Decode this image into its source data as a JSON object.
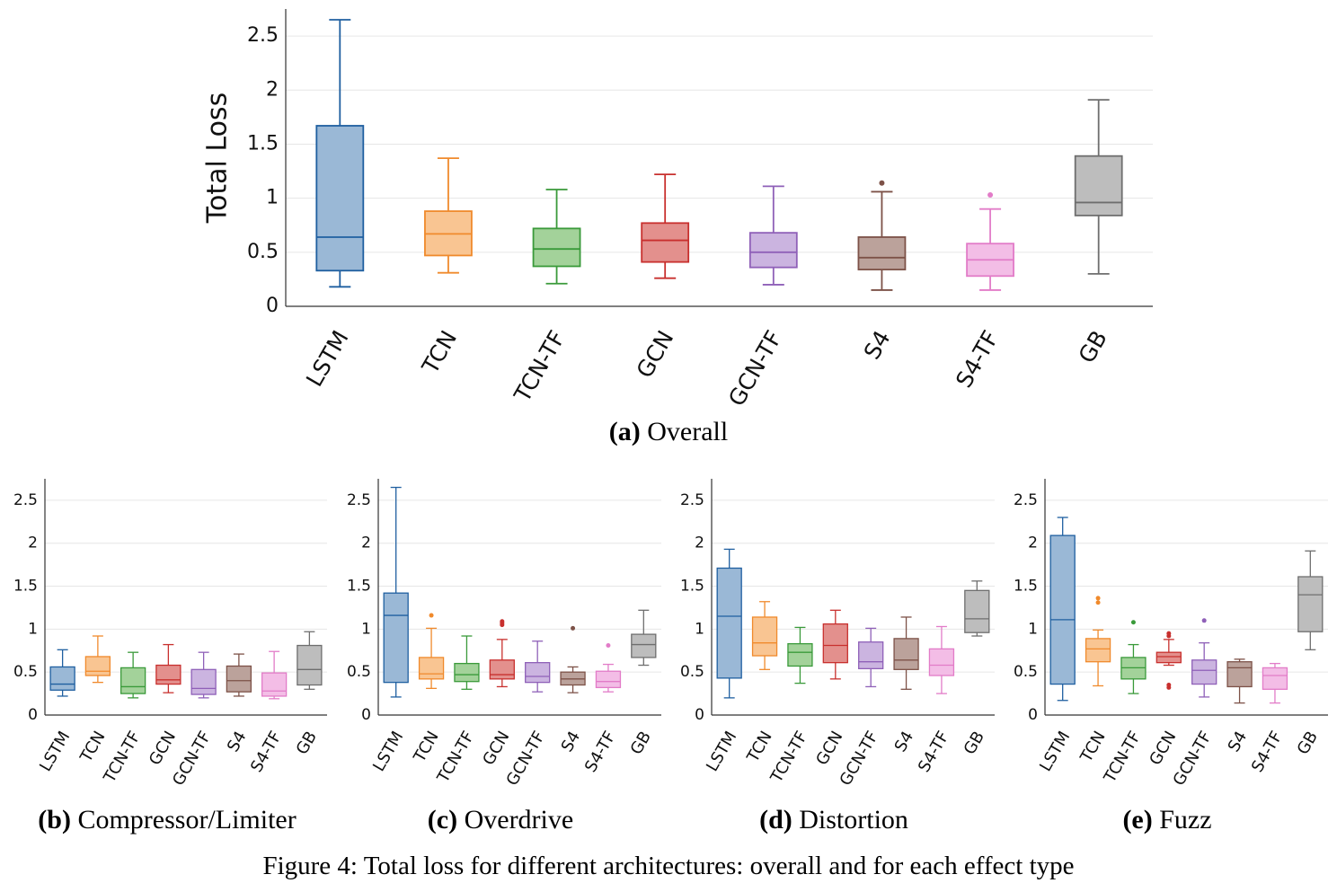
{
  "figure_caption": "Figure 4: Total loss for different architectures: overall and for each effect type",
  "chart_data": [
    {
      "id": "a",
      "type": "box",
      "panel_label": "(a)",
      "title": "Overall",
      "ylabel": "Total Loss",
      "ylim": [
        0,
        2.75
      ],
      "yticks": [
        0,
        0.5,
        1,
        1.5,
        2,
        2.5
      ],
      "ytick_labels": [
        "0",
        "0.5",
        "1",
        "1.5",
        "2",
        "2.5"
      ],
      "grid": true,
      "categories": [
        "LSTM",
        "TCN",
        "TCN-TF",
        "GCN",
        "GCN-TF",
        "S4",
        "S4-TF",
        "GB"
      ],
      "boxes": [
        {
          "min": 0.18,
          "q1": 0.33,
          "median": 0.64,
          "q3": 1.67,
          "max": 2.65,
          "outliers": []
        },
        {
          "min": 0.31,
          "q1": 0.47,
          "median": 0.67,
          "q3": 0.88,
          "max": 1.37,
          "outliers": []
        },
        {
          "min": 0.21,
          "q1": 0.37,
          "median": 0.53,
          "q3": 0.72,
          "max": 1.08,
          "outliers": []
        },
        {
          "min": 0.26,
          "q1": 0.41,
          "median": 0.61,
          "q3": 0.77,
          "max": 1.22,
          "outliers": []
        },
        {
          "min": 0.2,
          "q1": 0.36,
          "median": 0.5,
          "q3": 0.68,
          "max": 1.11,
          "outliers": []
        },
        {
          "min": 0.15,
          "q1": 0.34,
          "median": 0.45,
          "q3": 0.64,
          "max": 1.06,
          "outliers": [
            1.14
          ]
        },
        {
          "min": 0.15,
          "q1": 0.28,
          "median": 0.43,
          "q3": 0.58,
          "max": 0.9,
          "outliers": [
            1.03
          ]
        },
        {
          "min": 0.3,
          "q1": 0.84,
          "median": 0.96,
          "q3": 1.39,
          "max": 1.91,
          "outliers": []
        }
      ]
    },
    {
      "id": "b",
      "type": "box",
      "panel_label": "(b)",
      "title": "Compressor/Limiter",
      "ylim": [
        0,
        2.75
      ],
      "yticks": [
        0,
        0.5,
        1,
        1.5,
        2,
        2.5
      ],
      "ytick_labels": [
        "0",
        "0.5",
        "1",
        "1.5",
        "2",
        "2.5"
      ],
      "grid": true,
      "categories": [
        "LSTM",
        "TCN",
        "TCN-TF",
        "GCN",
        "GCN-TF",
        "S4",
        "S4-TF",
        "GB"
      ],
      "boxes": [
        {
          "min": 0.22,
          "q1": 0.29,
          "median": 0.36,
          "q3": 0.56,
          "max": 0.76,
          "outliers": []
        },
        {
          "min": 0.38,
          "q1": 0.46,
          "median": 0.51,
          "q3": 0.68,
          "max": 0.92,
          "outliers": []
        },
        {
          "min": 0.2,
          "q1": 0.25,
          "median": 0.33,
          "q3": 0.55,
          "max": 0.73,
          "outliers": []
        },
        {
          "min": 0.26,
          "q1": 0.36,
          "median": 0.41,
          "q3": 0.58,
          "max": 0.82,
          "outliers": []
        },
        {
          "min": 0.2,
          "q1": 0.24,
          "median": 0.31,
          "q3": 0.53,
          "max": 0.73,
          "outliers": []
        },
        {
          "min": 0.22,
          "q1": 0.27,
          "median": 0.4,
          "q3": 0.57,
          "max": 0.71,
          "outliers": []
        },
        {
          "min": 0.19,
          "q1": 0.22,
          "median": 0.28,
          "q3": 0.49,
          "max": 0.74,
          "outliers": []
        },
        {
          "min": 0.3,
          "q1": 0.35,
          "median": 0.53,
          "q3": 0.81,
          "max": 0.97,
          "outliers": []
        }
      ]
    },
    {
      "id": "c",
      "type": "box",
      "panel_label": "(c)",
      "title": "Overdrive",
      "ylim": [
        0,
        2.75
      ],
      "yticks": [
        0,
        0.5,
        1,
        1.5,
        2,
        2.5
      ],
      "ytick_labels": [
        "0",
        "0.5",
        "1",
        "1.5",
        "2",
        "2.5"
      ],
      "grid": true,
      "categories": [
        "LSTM",
        "TCN",
        "TCN-TF",
        "GCN",
        "GCN-TF",
        "S4",
        "S4-TF",
        "GB"
      ],
      "boxes": [
        {
          "min": 0.21,
          "q1": 0.38,
          "median": 1.16,
          "q3": 1.42,
          "max": 2.65,
          "outliers": []
        },
        {
          "min": 0.31,
          "q1": 0.42,
          "median": 0.48,
          "q3": 0.67,
          "max": 1.01,
          "outliers": [
            1.16
          ]
        },
        {
          "min": 0.3,
          "q1": 0.39,
          "median": 0.47,
          "q3": 0.6,
          "max": 0.92,
          "outliers": []
        },
        {
          "min": 0.33,
          "q1": 0.42,
          "median": 0.47,
          "q3": 0.64,
          "max": 0.88,
          "outliers": [
            1.05,
            1.07,
            1.09
          ]
        },
        {
          "min": 0.27,
          "q1": 0.38,
          "median": 0.45,
          "q3": 0.61,
          "max": 0.86,
          "outliers": []
        },
        {
          "min": 0.26,
          "q1": 0.35,
          "median": 0.42,
          "q3": 0.5,
          "max": 0.56,
          "outliers": [
            1.01
          ]
        },
        {
          "min": 0.27,
          "q1": 0.32,
          "median": 0.39,
          "q3": 0.51,
          "max": 0.59,
          "outliers": [
            0.81
          ]
        },
        {
          "min": 0.58,
          "q1": 0.67,
          "median": 0.82,
          "q3": 0.94,
          "max": 1.22,
          "outliers": []
        }
      ]
    },
    {
      "id": "d",
      "type": "box",
      "panel_label": "(d)",
      "title": "Distortion",
      "ylim": [
        0,
        2.75
      ],
      "yticks": [
        0,
        0.5,
        1,
        1.5,
        2,
        2.5
      ],
      "ytick_labels": [
        "0",
        "0.5",
        "1",
        "1.5",
        "2",
        "2.5"
      ],
      "grid": true,
      "categories": [
        "LSTM",
        "TCN",
        "TCN-TF",
        "GCN",
        "GCN-TF",
        "S4",
        "S4-TF",
        "GB"
      ],
      "boxes": [
        {
          "min": 0.2,
          "q1": 0.43,
          "median": 1.15,
          "q3": 1.71,
          "max": 1.93,
          "outliers": []
        },
        {
          "min": 0.53,
          "q1": 0.69,
          "median": 0.84,
          "q3": 1.14,
          "max": 1.32,
          "outliers": []
        },
        {
          "min": 0.37,
          "q1": 0.57,
          "median": 0.73,
          "q3": 0.83,
          "max": 1.02,
          "outliers": []
        },
        {
          "min": 0.42,
          "q1": 0.61,
          "median": 0.81,
          "q3": 1.06,
          "max": 1.22,
          "outliers": []
        },
        {
          "min": 0.33,
          "q1": 0.54,
          "median": 0.62,
          "q3": 0.85,
          "max": 1.01,
          "outliers": []
        },
        {
          "min": 0.3,
          "q1": 0.53,
          "median": 0.64,
          "q3": 0.89,
          "max": 1.14,
          "outliers": []
        },
        {
          "min": 0.25,
          "q1": 0.46,
          "median": 0.58,
          "q3": 0.77,
          "max": 1.03,
          "outliers": []
        },
        {
          "min": 0.92,
          "q1": 0.96,
          "median": 1.12,
          "q3": 1.45,
          "max": 1.56,
          "outliers": []
        }
      ]
    },
    {
      "id": "e",
      "type": "box",
      "panel_label": "(e)",
      "title": "Fuzz",
      "ylim": [
        0,
        2.75
      ],
      "yticks": [
        0,
        0.5,
        1,
        1.5,
        2,
        2.5
      ],
      "ytick_labels": [
        "0",
        "0.5",
        "1",
        "1.5",
        "2",
        "2.5"
      ],
      "grid": true,
      "categories": [
        "LSTM",
        "TCN",
        "TCN-TF",
        "GCN",
        "GCN-TF",
        "S4",
        "S4-TF",
        "GB"
      ],
      "boxes": [
        {
          "min": 0.17,
          "q1": 0.36,
          "median": 1.11,
          "q3": 2.09,
          "max": 2.3,
          "outliers": []
        },
        {
          "min": 0.34,
          "q1": 0.62,
          "median": 0.77,
          "q3": 0.89,
          "max": 0.99,
          "outliers": [
            1.31,
            1.36
          ]
        },
        {
          "min": 0.25,
          "q1": 0.42,
          "median": 0.55,
          "q3": 0.67,
          "max": 0.82,
          "outliers": [
            1.08
          ]
        },
        {
          "min": 0.58,
          "q1": 0.61,
          "median": 0.68,
          "q3": 0.73,
          "max": 0.88,
          "outliers": [
            0.32,
            0.35,
            0.92,
            0.95
          ]
        },
        {
          "min": 0.21,
          "q1": 0.36,
          "median": 0.52,
          "q3": 0.64,
          "max": 0.84,
          "outliers": [
            1.1
          ]
        },
        {
          "min": 0.14,
          "q1": 0.33,
          "median": 0.55,
          "q3": 0.62,
          "max": 0.65,
          "outliers": []
        },
        {
          "min": 0.14,
          "q1": 0.3,
          "median": 0.46,
          "q3": 0.55,
          "max": 0.6,
          "outliers": []
        },
        {
          "min": 0.76,
          "q1": 0.97,
          "median": 1.4,
          "q3": 1.61,
          "max": 1.91,
          "outliers": []
        }
      ]
    }
  ],
  "colors": {
    "LSTM": {
      "line": "#1f5fa0",
      "fill": "#9ab8d6"
    },
    "TCN": {
      "line": "#f08a2c",
      "fill": "#f9c592"
    },
    "TCN-TF": {
      "line": "#3a9a3a",
      "fill": "#a3d29a"
    },
    "GCN": {
      "line": "#c8302e",
      "fill": "#e3908d"
    },
    "GCN-TF": {
      "line": "#8f60b8",
      "fill": "#cbb4e0"
    },
    "S4": {
      "line": "#7d5248",
      "fill": "#bba29b"
    },
    "S4-TF": {
      "line": "#e27cc8",
      "fill": "#f3bde6"
    },
    "GB": {
      "line": "#6e6e6e",
      "fill": "#bdbdbd"
    },
    "grid": "#e6e6e6",
    "axis": "#333333"
  }
}
